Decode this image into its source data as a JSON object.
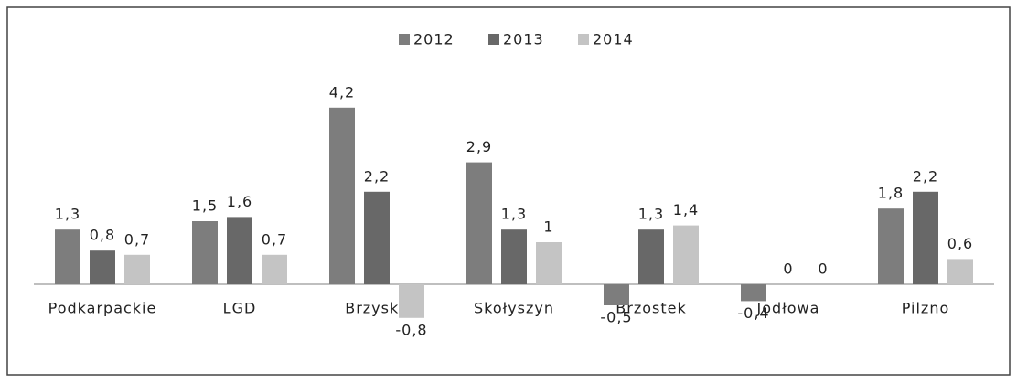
{
  "chart_data": {
    "type": "bar",
    "categories": [
      "Podkarpackie",
      "LGD",
      "Brzyska",
      "Skołyszyn",
      "Brzostek",
      "Jodłowa",
      "Pilzno"
    ],
    "series": [
      {
        "name": "2012",
        "color": "#7d7d7d",
        "values": [
          1.3,
          1.5,
          4.2,
          2.9,
          -0.5,
          -0.4,
          1.8
        ],
        "value_labels": [
          "1,3",
          "1,5",
          "4,2",
          "2,9",
          "-0,5",
          "-0,4",
          "1,8"
        ]
      },
      {
        "name": "2013",
        "color": "#686868",
        "values": [
          0.8,
          1.6,
          2.2,
          1.3,
          1.3,
          0,
          2.2
        ],
        "value_labels": [
          "0,8",
          "1,6",
          "2,2",
          "1,3",
          "1,3",
          "0",
          "2,2"
        ]
      },
      {
        "name": "2014",
        "color": "#c4c4c4",
        "values": [
          0.7,
          0.7,
          -0.8,
          1,
          1.4,
          0,
          0.6
        ],
        "value_labels": [
          "0,7",
          "0,7",
          "-0,8",
          "1",
          "1,4",
          "0",
          "0,6"
        ]
      }
    ],
    "legend": "top"
  }
}
